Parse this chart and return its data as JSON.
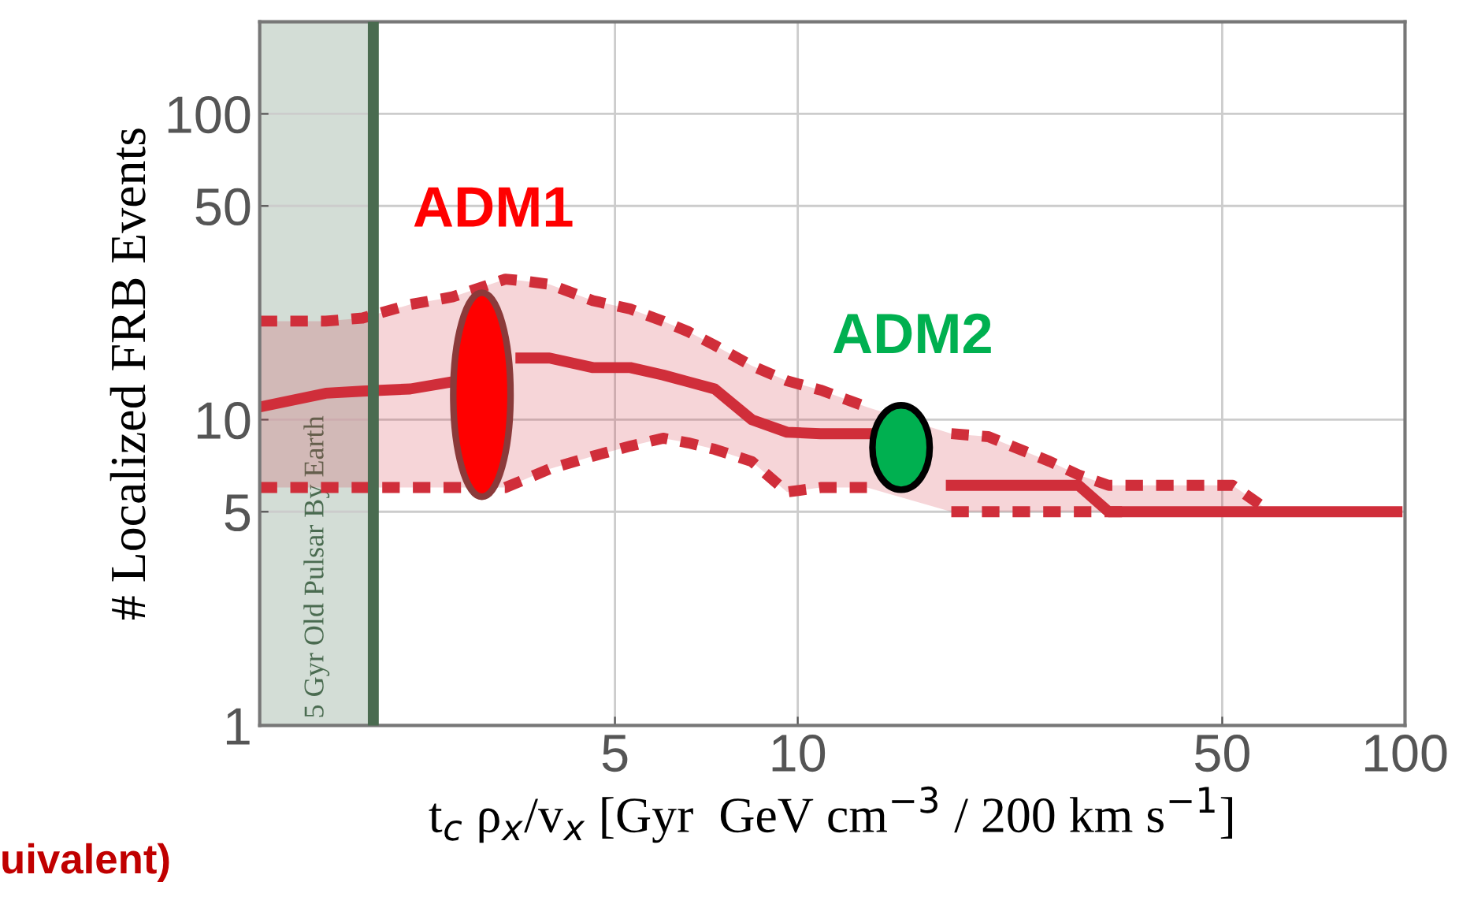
{
  "chart_data": {
    "type": "line",
    "xlabel": "t$_{c}$ ρ$_{x}$/v$_{x}$ [Gyr  GeV cm$^{−3}$ / 200 km s$^{−1}$]",
    "ylabel": "# Localized FRB Events",
    "log": "xy",
    "xlim": [
      1.3,
      100
    ],
    "ylim": [
      1,
      200
    ],
    "xticks": [
      5,
      10,
      50,
      100
    ],
    "yticks": [
      1,
      5,
      10,
      50,
      100
    ],
    "grid": true,
    "x": [
      1.3,
      1.67,
      1.92,
      2.3,
      2.7,
      3.3,
      3.5,
      3.9,
      4.6,
      5.3,
      6.0,
      6.6,
      7.3,
      8.4,
      9.6,
      10.9,
      13.0,
      15.6,
      17.9,
      20.6,
      26,
      29,
      32.5,
      35,
      52,
      60,
      97
    ],
    "series": [
      {
        "color": "#d02e3a",
        "line_style": "solid",
        "values": [
          11,
          12.2,
          12.4,
          12.6,
          13.3,
          null,
          15.9,
          15.9,
          14.8,
          14.8,
          14,
          13.3,
          12.6,
          10,
          9.1,
          9,
          9,
          null,
          6.1,
          6.1,
          6.1,
          6.1,
          5,
          5,
          5,
          5,
          5
        ],
        "lower": [
          6,
          6,
          6,
          6,
          6,
          6,
          6.3,
          6.9,
          7.6,
          8.2,
          8.7,
          8.4,
          8,
          7.3,
          5.8,
          6,
          6,
          null,
          5,
          5,
          5,
          5,
          5,
          5,
          5,
          5,
          null
        ],
        "upper": [
          21,
          21,
          21.5,
          23.8,
          25.2,
          28.8,
          28.5,
          27.7,
          24.5,
          23,
          21,
          19.4,
          17.5,
          15,
          13.4,
          12.5,
          11,
          null,
          9,
          8.8,
          7.3,
          6.6,
          6.1,
          6.1,
          6.1,
          5,
          null
        ]
      },
      {
        "color": "#d02e3a",
        "line_style": "dashed",
        "values": [
          21,
          21,
          21.5,
          23.8,
          25.2,
          28.8,
          28.5,
          27.7,
          24.5,
          23,
          21,
          19.4,
          17.5,
          15,
          13.4,
          12.5,
          11,
          null,
          9,
          8.8,
          7.3,
          6.6,
          6.1,
          6.1,
          6.1,
          5,
          null
        ]
      },
      {
        "color": "#d02e3a",
        "line_style": "dashed",
        "values": [
          6,
          6,
          6,
          6,
          6,
          6,
          6.3,
          6.9,
          7.6,
          8.2,
          8.7,
          8.4,
          8,
          7.3,
          5.8,
          6,
          6,
          null,
          5,
          5,
          5,
          5,
          5,
          5,
          null,
          null,
          null
        ]
      }
    ],
    "bands": [
      {
        "axis": "x",
        "from": 1.3,
        "to": 2,
        "label": "5 Gyr Old Pulsar By Earth",
        "color": "#d3ddd6"
      }
    ],
    "ref_lines": [
      {
        "axis": "x",
        "value": 2,
        "color": "#4a6b50",
        "line_style": "solid"
      }
    ],
    "annotations": [
      "ADM1",
      "ADM2",
      "uivalent)"
    ]
  }
}
